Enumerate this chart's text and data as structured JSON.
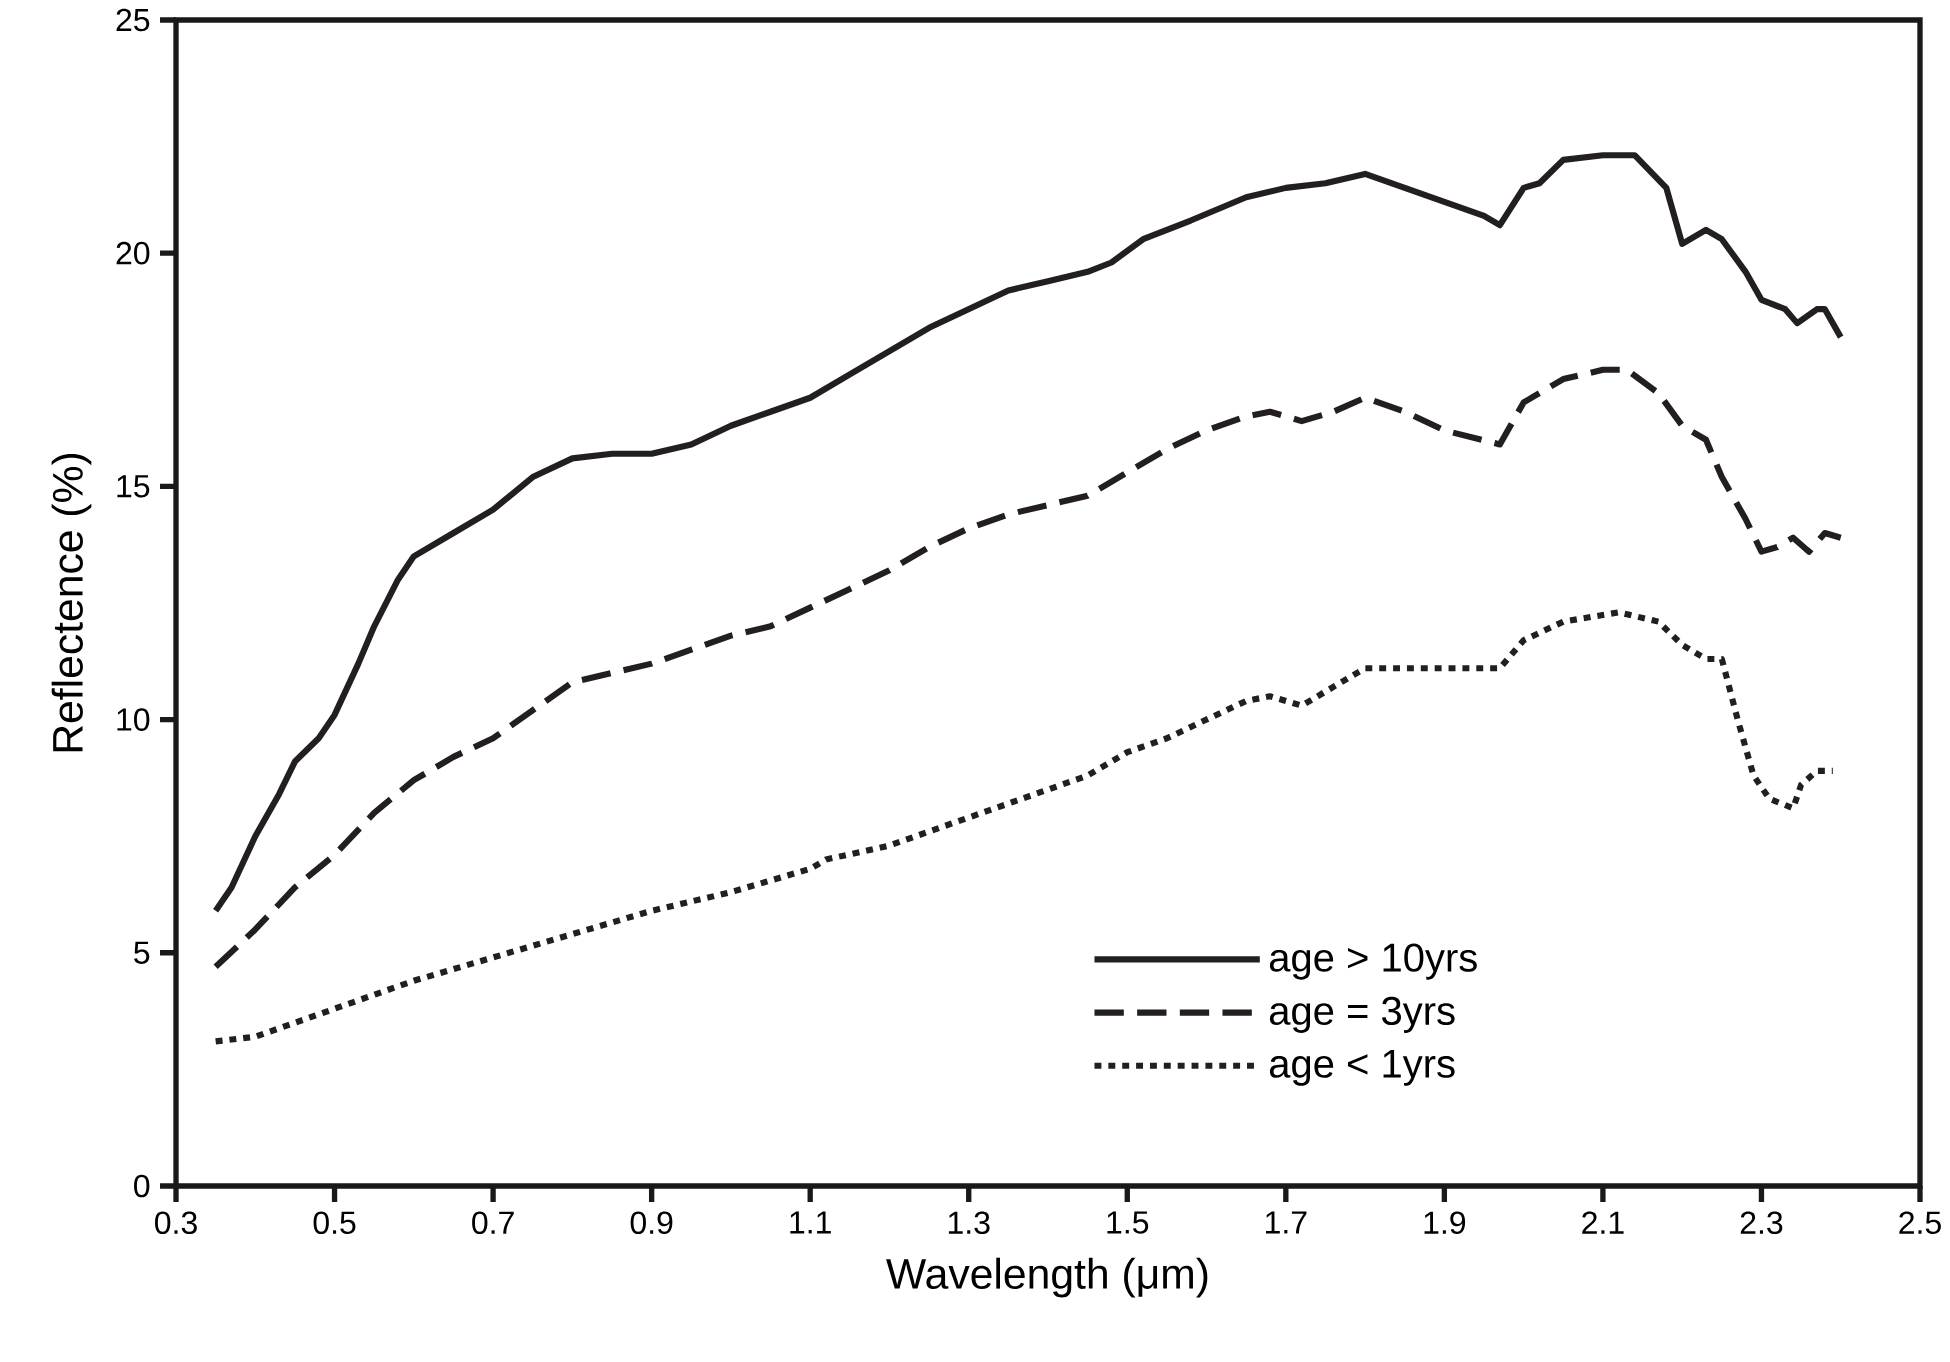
{
  "chart_data": {
    "type": "line",
    "xlabel": "Wavelength (μm)",
    "ylabel": "Reflectence (%)",
    "xlim": [
      0.3,
      2.5
    ],
    "ylim": [
      0,
      25
    ],
    "xticks": [
      0.3,
      0.5,
      0.7,
      0.9,
      1.1,
      1.3,
      1.5,
      1.7,
      1.9,
      2.1,
      2.3,
      2.5
    ],
    "yticks": [
      0,
      5,
      10,
      15,
      20,
      25
    ],
    "legend": "bottom right",
    "series": [
      {
        "name": "age > 10yrs",
        "color": "#231f20",
        "line_style": "solid",
        "x": [
          0.35,
          0.37,
          0.4,
          0.43,
          0.45,
          0.48,
          0.5,
          0.53,
          0.55,
          0.58,
          0.6,
          0.65,
          0.7,
          0.75,
          0.8,
          0.85,
          0.9,
          0.95,
          1.0,
          1.05,
          1.1,
          1.15,
          1.2,
          1.25,
          1.3,
          1.35,
          1.4,
          1.45,
          1.48,
          1.52,
          1.58,
          1.65,
          1.7,
          1.75,
          1.8,
          1.85,
          1.9,
          1.95,
          1.97,
          2.0,
          2.02,
          2.05,
          2.1,
          2.13,
          2.14,
          2.18,
          2.2,
          2.23,
          2.25,
          2.28,
          2.3,
          2.33,
          2.345,
          2.37,
          2.38,
          2.4
        ],
        "values": [
          5.9,
          6.4,
          7.5,
          8.4,
          9.1,
          9.6,
          10.1,
          11.2,
          12.0,
          13.0,
          13.5,
          14.0,
          14.5,
          15.2,
          15.6,
          15.7,
          15.7,
          15.9,
          16.3,
          16.6,
          16.9,
          17.4,
          17.9,
          18.4,
          18.8,
          19.2,
          19.4,
          19.6,
          19.8,
          20.3,
          20.7,
          21.2,
          21.4,
          21.5,
          21.7,
          21.4,
          21.1,
          20.8,
          20.6,
          21.4,
          21.5,
          22.0,
          22.1,
          22.1,
          22.1,
          21.4,
          20.2,
          20.5,
          20.3,
          19.6,
          19.0,
          18.8,
          18.5,
          18.8,
          18.8,
          18.2
        ]
      },
      {
        "name": "age =  3yrs",
        "color": "#231f20",
        "line_style": "dashed",
        "x": [
          0.35,
          0.4,
          0.45,
          0.5,
          0.55,
          0.6,
          0.65,
          0.7,
          0.75,
          0.8,
          0.85,
          0.9,
          0.95,
          1.0,
          1.05,
          1.1,
          1.15,
          1.2,
          1.25,
          1.3,
          1.35,
          1.4,
          1.45,
          1.5,
          1.55,
          1.6,
          1.65,
          1.68,
          1.72,
          1.76,
          1.8,
          1.85,
          1.9,
          1.97,
          2.0,
          2.05,
          2.1,
          2.13,
          2.17,
          2.2,
          2.23,
          2.25,
          2.28,
          2.3,
          2.32,
          2.34,
          2.36,
          2.38,
          2.4
        ],
        "values": [
          4.7,
          5.5,
          6.4,
          7.1,
          8.0,
          8.7,
          9.2,
          9.6,
          10.2,
          10.8,
          11.0,
          11.2,
          11.5,
          11.8,
          12.0,
          12.4,
          12.8,
          13.2,
          13.7,
          14.1,
          14.4,
          14.6,
          14.8,
          15.3,
          15.8,
          16.2,
          16.5,
          16.6,
          16.4,
          16.6,
          16.9,
          16.6,
          16.2,
          15.9,
          16.8,
          17.3,
          17.5,
          17.5,
          17.0,
          16.3,
          16.0,
          15.2,
          14.3,
          13.6,
          13.7,
          13.9,
          13.6,
          14.0,
          13.9
        ]
      },
      {
        "name": "age <  1yrs",
        "color": "#231f20",
        "line_style": "dotted",
        "x": [
          0.35,
          0.4,
          0.45,
          0.5,
          0.55,
          0.6,
          0.7,
          0.8,
          0.9,
          1.0,
          1.1,
          1.12,
          1.2,
          1.3,
          1.4,
          1.45,
          1.5,
          1.55,
          1.6,
          1.65,
          1.68,
          1.72,
          1.76,
          1.8,
          1.9,
          1.97,
          2.0,
          2.05,
          2.12,
          2.17,
          2.2,
          2.23,
          2.25,
          2.27,
          2.29,
          2.31,
          2.34,
          2.35,
          2.37,
          2.39
        ],
        "values": [
          3.1,
          3.2,
          3.5,
          3.8,
          4.1,
          4.4,
          4.9,
          5.4,
          5.9,
          6.3,
          6.8,
          7.0,
          7.3,
          7.9,
          8.5,
          8.8,
          9.3,
          9.6,
          10.0,
          10.4,
          10.5,
          10.3,
          10.7,
          11.1,
          11.1,
          11.1,
          11.7,
          12.1,
          12.3,
          12.1,
          11.6,
          11.3,
          11.3,
          10.0,
          8.8,
          8.3,
          8.1,
          8.6,
          8.9,
          8.9
        ]
      }
    ]
  }
}
